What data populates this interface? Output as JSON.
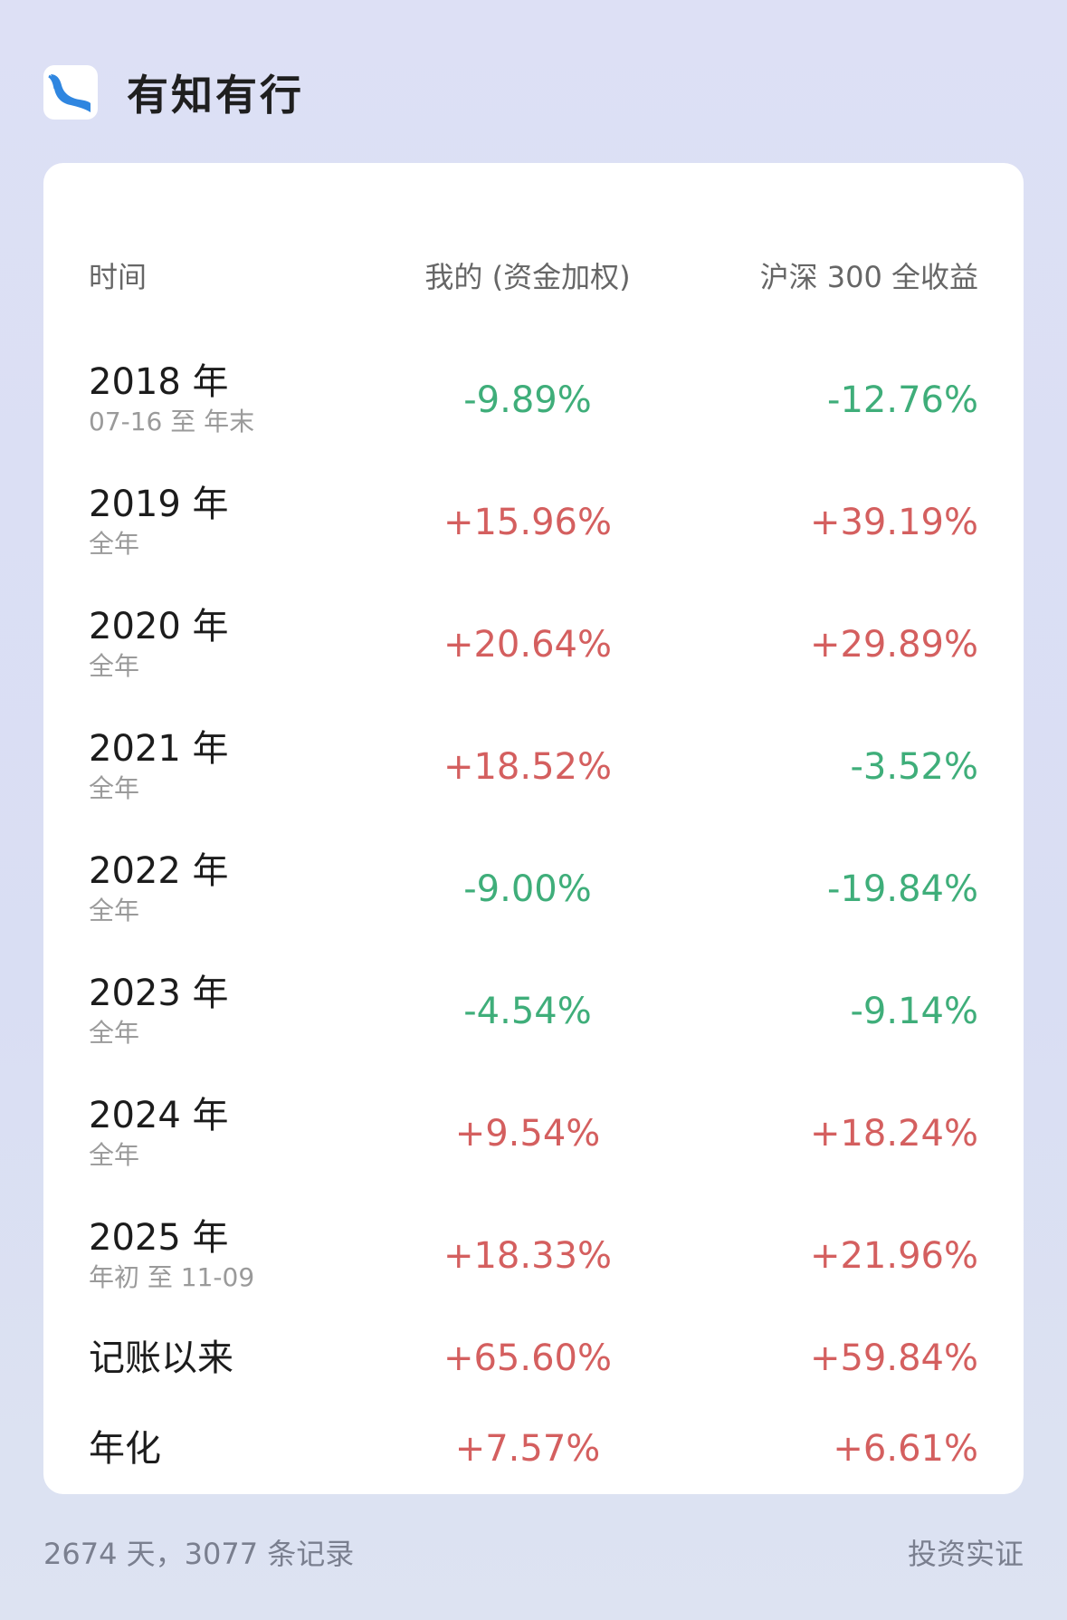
{
  "app": {
    "title": "有知有行",
    "icon": "river-logo-icon",
    "accent": "#2f86e0"
  },
  "table": {
    "headers": {
      "time": "时间",
      "mine": "我的 (资金加权)",
      "index": "沪深 300 全收益"
    },
    "rows": [
      {
        "year": "2018 年",
        "period": "07-16 至 年末",
        "mine": "-9.89%",
        "index": "-12.76%"
      },
      {
        "year": "2019 年",
        "period": "全年",
        "mine": "+15.96%",
        "index": "+39.19%"
      },
      {
        "year": "2020 年",
        "period": "全年",
        "mine": "+20.64%",
        "index": "+29.89%"
      },
      {
        "year": "2021 年",
        "period": "全年",
        "mine": "+18.52%",
        "index": "-3.52%"
      },
      {
        "year": "2022 年",
        "period": "全年",
        "mine": "-9.00%",
        "index": "-19.84%"
      },
      {
        "year": "2023 年",
        "period": "全年",
        "mine": "-4.54%",
        "index": "-9.14%"
      },
      {
        "year": "2024 年",
        "period": "全年",
        "mine": "+9.54%",
        "index": "+18.24%"
      },
      {
        "year": "2025 年",
        "period": "年初 至 11-09",
        "mine": "+18.33%",
        "index": "+21.96%"
      }
    ],
    "summary": [
      {
        "label": "记账以来",
        "mine": "+65.60%",
        "index": "+59.84%"
      },
      {
        "label": "年化",
        "mine": "+7.57%",
        "index": "+6.61%"
      }
    ],
    "colors": {
      "positive": "#d45f5f",
      "negative": "#3fae7a"
    }
  },
  "footer": {
    "stats": "2674 天，3077 条记录",
    "tagline": "投资实证"
  }
}
